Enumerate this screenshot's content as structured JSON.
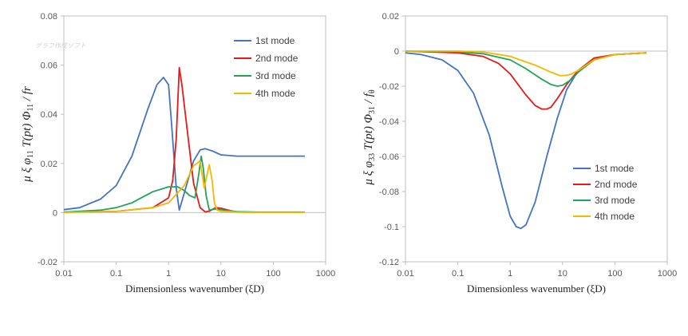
{
  "watermark": "グラフ作成ソフト",
  "colors": {
    "mode1": "#4472C4",
    "mode2": "#E41A1C",
    "mode3": "#21A45A",
    "mode4": "#F5B800"
  },
  "chart_data": [
    {
      "type": "line",
      "x_scale": "log",
      "xlim": [
        0.01,
        1000
      ],
      "ylim": [
        -0.02,
        0.08
      ],
      "x_ticks": [
        "0.01",
        "0.1",
        "1",
        "10",
        "100",
        "1000"
      ],
      "y_ticks": [
        "-0.02",
        "0",
        "0.02",
        "0.04",
        "0.06",
        "0.08"
      ],
      "y_tick_values": [
        -0.02,
        0,
        0.02,
        0.04,
        0.06,
        0.08
      ],
      "xlabel": "Dimensionless  wavenumber (ξD)",
      "ylabel": "μ ξ φ11 T(pt) Φ11 / fr",
      "grid": false,
      "legend": "top-right",
      "series": [
        {
          "name": "1st mode",
          "x": [
            0.01,
            0.02,
            0.05,
            0.1,
            0.2,
            0.4,
            0.6,
            0.8,
            1.0,
            1.15,
            1.4,
            1.6,
            2.0,
            3.0,
            4.0,
            5.0,
            7.0,
            10,
            20,
            50,
            100,
            400
          ],
          "y": [
            0.0012,
            0.002,
            0.0055,
            0.011,
            0.023,
            0.042,
            0.052,
            0.055,
            0.052,
            0.035,
            0.01,
            0.001,
            0.008,
            0.021,
            0.0255,
            0.026,
            0.025,
            0.0235,
            0.023,
            0.023,
            0.023,
            0.023
          ]
        },
        {
          "name": "2nd mode",
          "x": [
            0.01,
            0.1,
            0.5,
            1.0,
            1.2,
            1.4,
            1.6,
            1.8,
            2.2,
            3.0,
            4.0,
            5.0,
            6.0,
            8.0,
            10,
            15,
            20,
            50,
            400
          ],
          "y": [
            0.0002,
            0.0005,
            0.002,
            0.006,
            0.013,
            0.03,
            0.059,
            0.052,
            0.036,
            0.012,
            0.002,
            0.0003,
            0.0006,
            0.002,
            0.0018,
            0.0008,
            0.0003,
            0.0001,
            0.0001
          ]
        },
        {
          "name": "3rd mode",
          "x": [
            0.01,
            0.05,
            0.1,
            0.2,
            0.5,
            1.0,
            1.5,
            2.0,
            2.5,
            3.2,
            3.8,
            4.2,
            4.6,
            5.2,
            6.0,
            8.0,
            10,
            20,
            50,
            400
          ],
          "y": [
            0.0002,
            0.001,
            0.002,
            0.004,
            0.0085,
            0.0105,
            0.0105,
            0.009,
            0.007,
            0.006,
            0.016,
            0.023,
            0.018,
            0.007,
            0.001,
            0.0015,
            0.0012,
            0.0004,
            0.0002,
            0.0002
          ]
        },
        {
          "name": "4th mode",
          "x": [
            0.01,
            0.1,
            0.5,
            1.0,
            2.0,
            3.0,
            4.0,
            4.8,
            5.5,
            6.0,
            6.8,
            7.5,
            8.5,
            10,
            15,
            20,
            50,
            400
          ],
          "y": [
            0.0001,
            0.0005,
            0.002,
            0.004,
            0.011,
            0.019,
            0.021,
            0.01,
            0.016,
            0.0195,
            0.013,
            0.004,
            0.001,
            0.0005,
            0.0004,
            0.0002,
            0.0001,
            0.0001
          ]
        }
      ]
    },
    {
      "type": "line",
      "x_scale": "log",
      "xlim": [
        0.01,
        1000
      ],
      "ylim": [
        -0.12,
        0.02
      ],
      "x_ticks": [
        "0.01",
        "0.1",
        "1",
        "10",
        "100",
        "1000"
      ],
      "y_ticks": [
        "-0.12",
        "-0.1",
        "-0.08",
        "-0.06",
        "-0.04",
        "-0.02",
        "0",
        "0.02"
      ],
      "y_tick_values": [
        -0.12,
        -0.1,
        -0.08,
        -0.06,
        -0.04,
        -0.02,
        0,
        0.02
      ],
      "xlabel": "Dimensionless  wavenumber (ξD)",
      "ylabel": "μ ξ φ33 T(pt) Φ31 / fθ",
      "grid": false,
      "legend": "bottom-right",
      "series": [
        {
          "name": "1st mode",
          "x": [
            0.01,
            0.02,
            0.05,
            0.1,
            0.2,
            0.4,
            0.7,
            1.0,
            1.3,
            1.6,
            2.0,
            3.0,
            5.0,
            8.0,
            12,
            20,
            40,
            100,
            400
          ],
          "y": [
            -0.001,
            -0.002,
            -0.005,
            -0.011,
            -0.024,
            -0.048,
            -0.077,
            -0.094,
            -0.1,
            -0.101,
            -0.099,
            -0.086,
            -0.06,
            -0.038,
            -0.022,
            -0.011,
            -0.004,
            -0.002,
            -0.001
          ]
        },
        {
          "name": "2nd mode",
          "x": [
            0.01,
            0.1,
            0.3,
            0.6,
            1.0,
            2.0,
            3.0,
            4.0,
            5.0,
            6.0,
            8.0,
            12,
            20,
            40,
            100,
            400
          ],
          "y": [
            0,
            -0.001,
            -0.003,
            -0.007,
            -0.013,
            -0.025,
            -0.031,
            -0.033,
            -0.033,
            -0.032,
            -0.027,
            -0.019,
            -0.011,
            -0.004,
            -0.002,
            -0.001
          ]
        },
        {
          "name": "3rd mode",
          "x": [
            0.01,
            0.1,
            0.3,
            1.0,
            2.0,
            4.0,
            6.0,
            8.0,
            10,
            15,
            20,
            40,
            100,
            400
          ],
          "y": [
            0,
            -0.0005,
            -0.0015,
            -0.005,
            -0.01,
            -0.016,
            -0.019,
            -0.02,
            -0.0195,
            -0.016,
            -0.012,
            -0.005,
            -0.002,
            -0.001
          ]
        },
        {
          "name": "4th mode",
          "x": [
            0.01,
            0.1,
            0.3,
            1.0,
            3.0,
            6.0,
            9.0,
            12,
            15,
            20,
            40,
            100,
            400
          ],
          "y": [
            0,
            0,
            -0.0005,
            -0.003,
            -0.008,
            -0.012,
            -0.014,
            -0.0138,
            -0.013,
            -0.011,
            -0.005,
            -0.002,
            -0.001
          ]
        }
      ]
    }
  ]
}
